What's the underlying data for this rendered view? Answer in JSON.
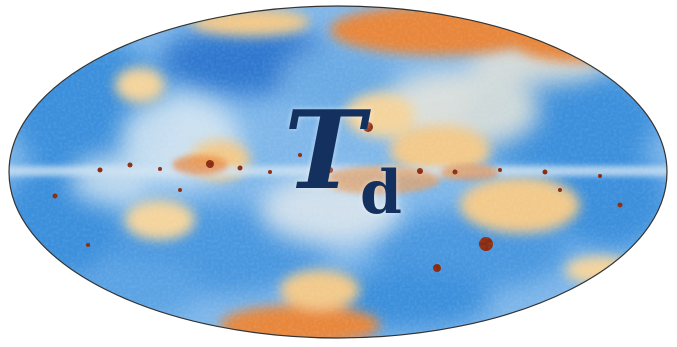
{
  "figure": {
    "symbol": "T",
    "subscript": "d",
    "colors": {
      "text": "#13305f",
      "cold_deep": "#1f5fc4",
      "cold": "#3b8fdc",
      "cool": "#9ccaf0",
      "neutral": "#eef2f2",
      "warm": "#f2c98a",
      "hot": "#e8863a",
      "hottest": "#b83a12",
      "outline": "#333333"
    }
  }
}
